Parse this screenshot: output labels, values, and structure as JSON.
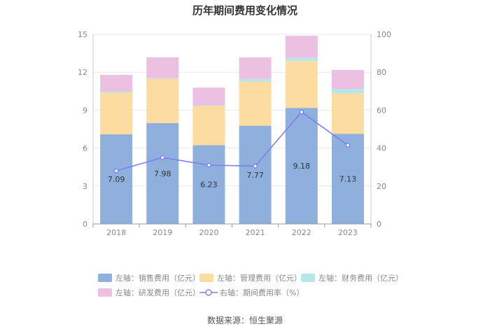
{
  "chart_data": {
    "type": "bar",
    "stacked": true,
    "title": "历年期间费用变化情况",
    "categories": [
      "2018",
      "2019",
      "2020",
      "2021",
      "2022",
      "2023"
    ],
    "left_axis": {
      "range": [
        0,
        15
      ],
      "ticks": [
        "0",
        "3",
        "6",
        "9",
        "12",
        "15"
      ]
    },
    "right_axis": {
      "range": [
        0,
        100
      ],
      "ticks": [
        "0",
        "20",
        "40",
        "60",
        "80",
        "100"
      ]
    },
    "series": [
      {
        "name": "左轴：销售费用（亿元）",
        "color": "#8fafdc",
        "axis": "left",
        "values": [
          7.09,
          7.98,
          6.23,
          7.77,
          9.18,
          7.13
        ],
        "labels": [
          "7.09",
          "7.98",
          "6.23",
          "7.77",
          "9.18",
          "7.13"
        ]
      },
      {
        "name": "左轴：管理费用（亿元）",
        "color": "#fcdca0",
        "axis": "left",
        "values": [
          3.3,
          3.5,
          3.1,
          3.5,
          3.7,
          3.2
        ]
      },
      {
        "name": "左轴：财务费用（亿元）",
        "color": "#b7e6ea",
        "axis": "left",
        "values": [
          0.1,
          0.05,
          0.05,
          0.2,
          0.25,
          0.35
        ]
      },
      {
        "name": "左轴：研发费用（亿元）",
        "color": "#ecc0e0",
        "axis": "left",
        "values": [
          1.3,
          1.65,
          1.4,
          1.7,
          1.75,
          1.5
        ]
      },
      {
        "name": "右轴：期间费用率（%）",
        "color": "#7b7ff0",
        "axis": "right",
        "type": "line",
        "values": [
          28,
          35,
          31,
          30.5,
          59,
          41.5
        ]
      }
    ]
  },
  "source": "数据来源：恒生聚源"
}
